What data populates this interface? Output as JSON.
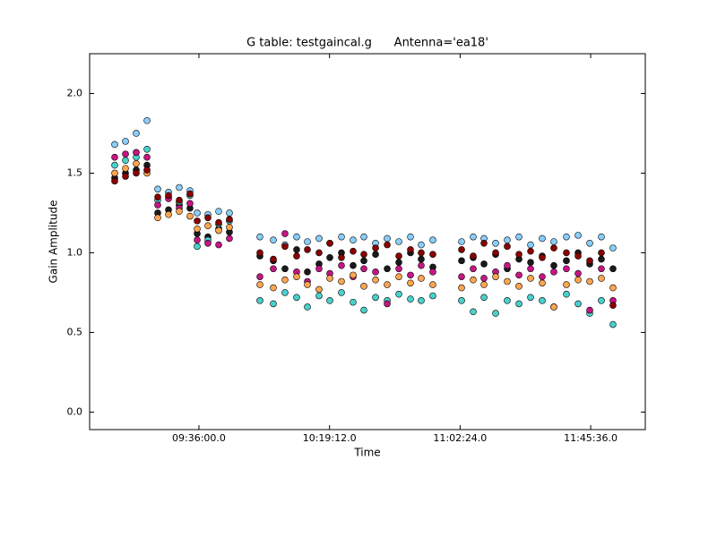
{
  "chart_data": {
    "type": "scatter",
    "title": "G table: testgaincal.g      Antenna='ea18'",
    "x_label": "Time",
    "y_label": "Gain Amplitude",
    "xlim": [
      32390,
      43420
    ],
    "ylim": [
      -0.11,
      2.25
    ],
    "xticks": [
      {
        "value": 34560,
        "label": "09:36:00.0"
      },
      {
        "value": 37152,
        "label": "10:19:12.0"
      },
      {
        "value": 39744,
        "label": "11:02:24.0"
      },
      {
        "value": 42336,
        "label": "11:45:36.0"
      }
    ],
    "yticks": [
      {
        "value": 0,
        "label": "0.0"
      },
      0.5,
      {
        "value": 1,
        "label": "1.0"
      },
      1.5,
      {
        "value": 2,
        "label": "2.0"
      }
    ],
    "x": [
      32888,
      33102,
      33315,
      33529,
      33742,
      33956,
      34169,
      34382,
      34525,
      34738,
      34952,
      35165,
      35770,
      36037,
      36268,
      36499,
      36713,
      36944,
      37158,
      37389,
      37620,
      37834,
      38066,
      38297,
      38528,
      38759,
      38972,
      39203,
      39773,
      40004,
      40218,
      40449,
      40680,
      40912,
      41143,
      41374,
      41605,
      41854,
      42086,
      42317,
      42548,
      42779
    ],
    "series": [
      {
        "color": "#1a1a1a",
        "values": [
          1.47,
          1.5,
          1.52,
          1.55,
          1.25,
          1.27,
          1.3,
          1.28,
          1.12,
          1.1,
          1.15,
          1.13,
          0.98,
          0.95,
          0.9,
          1.02,
          0.88,
          0.93,
          0.97,
          1.0,
          0.92,
          0.95,
          0.99,
          0.9,
          0.94,
          1.0,
          0.96,
          0.91,
          0.95,
          0.97,
          0.93,
          0.99,
          0.9,
          0.96,
          0.94,
          0.98,
          0.92,
          0.95,
          1.0,
          0.93,
          0.96,
          0.9
        ]
      },
      {
        "color": "#87cefa",
        "values": [
          1.68,
          1.7,
          1.75,
          1.83,
          1.4,
          1.38,
          1.41,
          1.39,
          1.25,
          1.24,
          1.26,
          1.25,
          1.1,
          1.08,
          1.05,
          1.1,
          1.07,
          1.09,
          1.06,
          1.1,
          1.08,
          1.1,
          1.06,
          1.09,
          1.07,
          1.1,
          1.05,
          1.08,
          1.07,
          1.1,
          1.09,
          1.06,
          1.08,
          1.1,
          1.05,
          1.09,
          1.07,
          1.1,
          1.11,
          1.06,
          1.1,
          1.03
        ]
      },
      {
        "color": "#48d1cc",
        "values": [
          1.55,
          1.58,
          1.6,
          1.65,
          1.33,
          1.35,
          1.32,
          1.36,
          1.04,
          1.08,
          1.18,
          1.2,
          0.7,
          0.68,
          0.75,
          0.72,
          0.66,
          0.73,
          0.7,
          0.75,
          0.69,
          0.64,
          0.72,
          0.7,
          0.74,
          0.71,
          0.7,
          0.73,
          0.7,
          0.63,
          0.72,
          0.62,
          0.7,
          0.68,
          0.72,
          0.7,
          0.66,
          0.74,
          0.68,
          0.62,
          0.7,
          0.55
        ]
      },
      {
        "color": "#c71585",
        "values": [
          1.6,
          1.62,
          1.63,
          1.6,
          1.3,
          1.34,
          1.28,
          1.31,
          1.08,
          1.06,
          1.05,
          1.09,
          0.85,
          0.9,
          1.12,
          0.88,
          0.82,
          0.9,
          0.87,
          0.92,
          0.85,
          0.9,
          0.88,
          0.68,
          0.9,
          0.86,
          0.92,
          0.88,
          0.85,
          0.9,
          0.84,
          0.88,
          0.92,
          0.86,
          0.9,
          0.85,
          0.88,
          0.9,
          0.87,
          0.64,
          0.9,
          0.7
        ]
      },
      {
        "color": "#ffa54f",
        "values": [
          1.5,
          1.53,
          1.56,
          1.5,
          1.22,
          1.24,
          1.26,
          1.23,
          1.15,
          1.17,
          1.14,
          1.16,
          0.8,
          0.78,
          0.83,
          0.85,
          0.8,
          0.77,
          0.84,
          0.82,
          0.86,
          0.79,
          0.83,
          0.8,
          0.85,
          0.81,
          0.84,
          0.8,
          0.78,
          0.83,
          0.8,
          0.85,
          0.82,
          0.79,
          0.84,
          0.81,
          0.66,
          0.8,
          0.83,
          0.82,
          0.84,
          0.78
        ]
      },
      {
        "color": "#8b0000",
        "values": [
          1.45,
          1.48,
          1.5,
          1.52,
          1.35,
          1.36,
          1.33,
          1.37,
          1.2,
          1.22,
          1.19,
          1.21,
          1.0,
          0.96,
          1.04,
          0.98,
          1.02,
          1.0,
          1.06,
          0.97,
          1.01,
          0.99,
          1.03,
          1.05,
          0.98,
          1.02,
          1.0,
          0.99,
          1.02,
          0.98,
          1.06,
          1.0,
          1.04,
          0.99,
          1.01,
          0.97,
          1.03,
          1.0,
          0.98,
          0.95,
          1.0,
          0.67
        ]
      }
    ]
  }
}
